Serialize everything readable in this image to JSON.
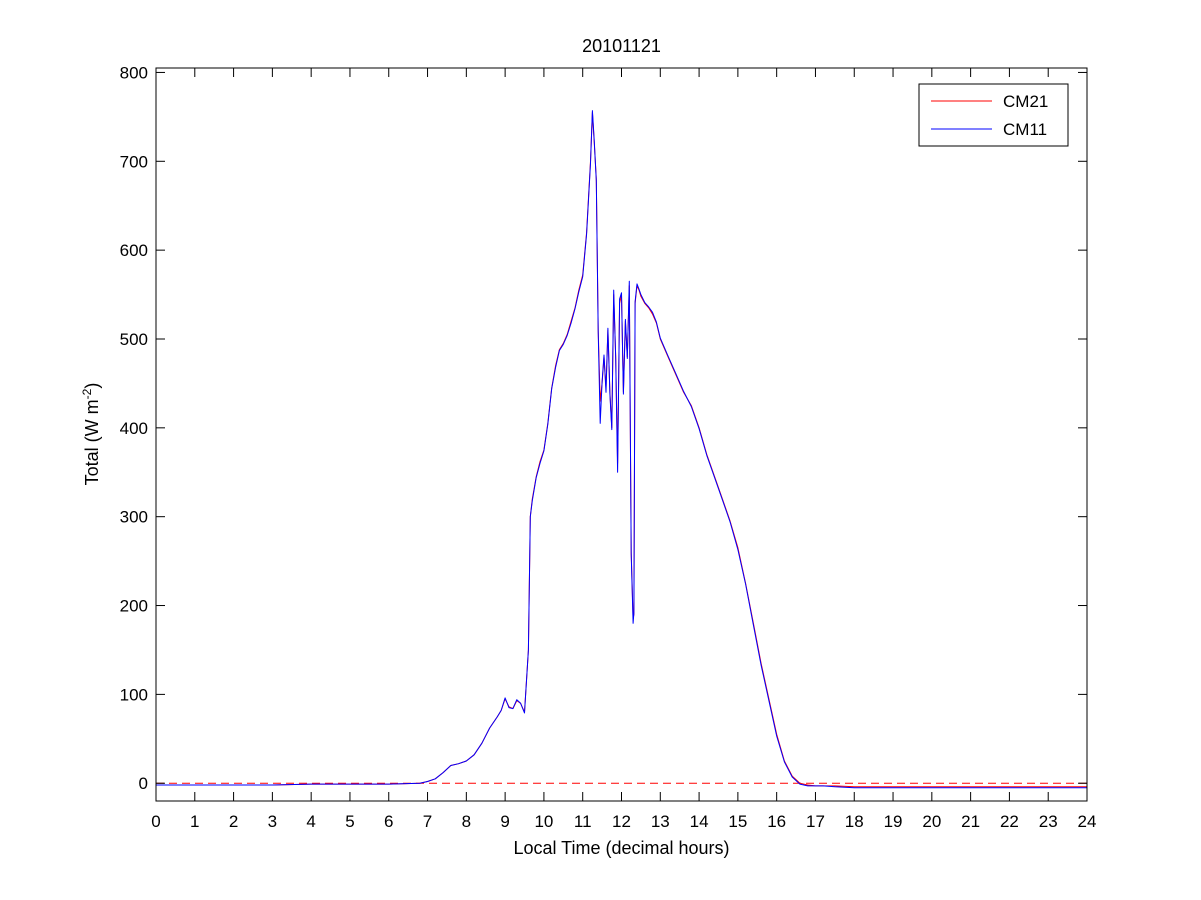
{
  "chart_data": {
    "type": "line",
    "title": "20101121",
    "xlabel": "Local Time (decimal hours)",
    "ylabel": {
      "prefix": "Total (W m",
      "superscript": "-2",
      "suffix": ")"
    },
    "xlim": [
      0,
      24
    ],
    "ylim": [
      -20,
      805
    ],
    "x_ticks": [
      0,
      1,
      2,
      3,
      4,
      5,
      6,
      7,
      8,
      9,
      10,
      11,
      12,
      13,
      14,
      15,
      16,
      17,
      18,
      19,
      20,
      21,
      22,
      23,
      24
    ],
    "y_ticks": [
      0,
      100,
      200,
      300,
      400,
      500,
      600,
      700,
      800
    ],
    "grid": false,
    "legend": "top-right",
    "reference_line": {
      "y": 0,
      "style": "dashed",
      "color": "#ff0000"
    },
    "series": [
      {
        "name": "CM21",
        "color": "#ff0000",
        "x": [
          0,
          1,
          2,
          3,
          4,
          5,
          6,
          6.8,
          7.0,
          7.2,
          7.4,
          7.6,
          7.8,
          8.0,
          8.2,
          8.4,
          8.6,
          8.8,
          8.9,
          9.0,
          9.1,
          9.2,
          9.3,
          9.4,
          9.5,
          9.6,
          9.65,
          9.7,
          9.8,
          9.9,
          10.0,
          10.1,
          10.2,
          10.3,
          10.4,
          10.5,
          10.6,
          10.7,
          10.8,
          10.9,
          11.0,
          11.1,
          11.2,
          11.25,
          11.3,
          11.35,
          11.4,
          11.45,
          11.5,
          11.55,
          11.6,
          11.65,
          11.7,
          11.75,
          11.8,
          11.85,
          11.9,
          11.95,
          12.0,
          12.05,
          12.1,
          12.15,
          12.2,
          12.25,
          12.3,
          12.32,
          12.35,
          12.4,
          12.45,
          12.5,
          12.6,
          12.7,
          12.8,
          12.9,
          13.0,
          13.2,
          13.4,
          13.6,
          13.8,
          14.0,
          14.2,
          14.4,
          14.6,
          14.8,
          15.0,
          15.2,
          15.4,
          15.6,
          15.8,
          16.0,
          16.2,
          16.4,
          16.6,
          16.8,
          17.0,
          17.2,
          17.5,
          18,
          19,
          20,
          21,
          22,
          23,
          24
        ],
        "y": [
          -2,
          -2,
          -2,
          -2,
          -1,
          -1,
          -1,
          0,
          2,
          5,
          12,
          20,
          22,
          25,
          32,
          45,
          62,
          75,
          82,
          95,
          86,
          84,
          93,
          90,
          80,
          150,
          300,
          320,
          345,
          362,
          375,
          405,
          445,
          470,
          488,
          495,
          505,
          520,
          535,
          555,
          572,
          620,
          700,
          755,
          720,
          680,
          510,
          430,
          450,
          480,
          445,
          510,
          440,
          400,
          550,
          480,
          360,
          540,
          550,
          440,
          520,
          480,
          560,
          260,
          185,
          190,
          540,
          560,
          555,
          548,
          540,
          535,
          528,
          518,
          500,
          480,
          460,
          440,
          425,
          400,
          370,
          345,
          320,
          295,
          265,
          225,
          180,
          135,
          95,
          55,
          25,
          8,
          0,
          -2,
          -3,
          -3,
          -3,
          -4,
          -4,
          -4,
          -4,
          -4,
          -4,
          -4
        ]
      },
      {
        "name": "CM11",
        "color": "#0000ff",
        "x": [
          0,
          1,
          2,
          3,
          4,
          5,
          6,
          6.8,
          7.0,
          7.2,
          7.4,
          7.6,
          7.8,
          8.0,
          8.2,
          8.4,
          8.6,
          8.8,
          8.9,
          9.0,
          9.1,
          9.2,
          9.3,
          9.4,
          9.5,
          9.6,
          9.65,
          9.7,
          9.8,
          9.9,
          10.0,
          10.1,
          10.2,
          10.3,
          10.4,
          10.5,
          10.6,
          10.7,
          10.8,
          10.9,
          11.0,
          11.1,
          11.2,
          11.25,
          11.3,
          11.35,
          11.4,
          11.45,
          11.5,
          11.55,
          11.6,
          11.65,
          11.7,
          11.75,
          11.8,
          11.85,
          11.9,
          11.95,
          12.0,
          12.05,
          12.1,
          12.15,
          12.2,
          12.25,
          12.3,
          12.32,
          12.35,
          12.4,
          12.45,
          12.5,
          12.6,
          12.7,
          12.8,
          12.9,
          13.0,
          13.2,
          13.4,
          13.6,
          13.8,
          14.0,
          14.2,
          14.4,
          14.6,
          14.8,
          15.0,
          15.2,
          15.4,
          15.6,
          15.8,
          16.0,
          16.2,
          16.4,
          16.6,
          16.8,
          17.0,
          17.2,
          17.5,
          18,
          19,
          20,
          21,
          22,
          23,
          24
        ],
        "y": [
          -2,
          -2,
          -2,
          -2,
          -1,
          -1,
          -1,
          0,
          2,
          5,
          12,
          20,
          22,
          25,
          32,
          45,
          62,
          75,
          82,
          96,
          85,
          84,
          94,
          90,
          79,
          150,
          300,
          318,
          344,
          360,
          374,
          404,
          444,
          468,
          487,
          494,
          504,
          518,
          534,
          553,
          570,
          618,
          698,
          757,
          722,
          678,
          508,
          405,
          452,
          482,
          440,
          512,
          438,
          398,
          555,
          478,
          350,
          545,
          552,
          438,
          522,
          478,
          565,
          258,
          180,
          192,
          542,
          562,
          556,
          550,
          541,
          536,
          530,
          519,
          501,
          481,
          461,
          441,
          424,
          399,
          369,
          344,
          319,
          294,
          263,
          224,
          178,
          133,
          93,
          53,
          24,
          7,
          -1,
          -3,
          -3,
          -3,
          -4,
          -5,
          -5,
          -5,
          -5,
          -5,
          -5,
          -5
        ]
      }
    ]
  }
}
